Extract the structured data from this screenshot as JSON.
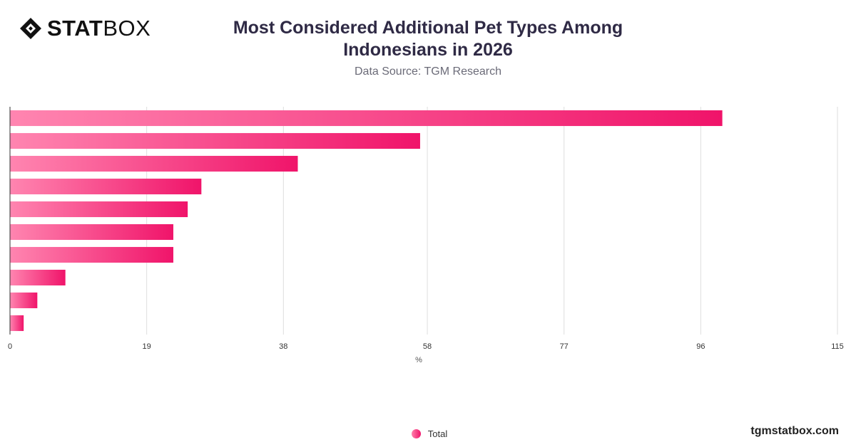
{
  "brand": {
    "logo_bold": "STAT",
    "logo_light": "BOX",
    "website": "tgmstatbox.com"
  },
  "header": {
    "title_line1": "Most Considered Additional Pet Types Among",
    "title_line2": "Indonesians in 2026",
    "subtitle": "Data Source: TGM Research"
  },
  "colors": {
    "bar_start": "#ff85b0",
    "bar_end": "#f0146a",
    "grid": "#dedede",
    "axis_text": "#333333"
  },
  "chart_data": {
    "type": "bar",
    "orientation": "horizontal",
    "categories": [
      "",
      "",
      "",
      "",
      "",
      "",
      "",
      "",
      "",
      ""
    ],
    "series": [
      {
        "name": "Total",
        "values": [
          99,
          57,
          40,
          26.6,
          24.7,
          22.7,
          22.7,
          7.7,
          3.8,
          1.9
        ]
      }
    ],
    "xlabel": "%",
    "ylabel": "",
    "xlim": [
      0,
      115
    ],
    "xticks": [
      0,
      19,
      38,
      58,
      77,
      96,
      115
    ],
    "grid": true,
    "legend_position": "bottom-center"
  }
}
